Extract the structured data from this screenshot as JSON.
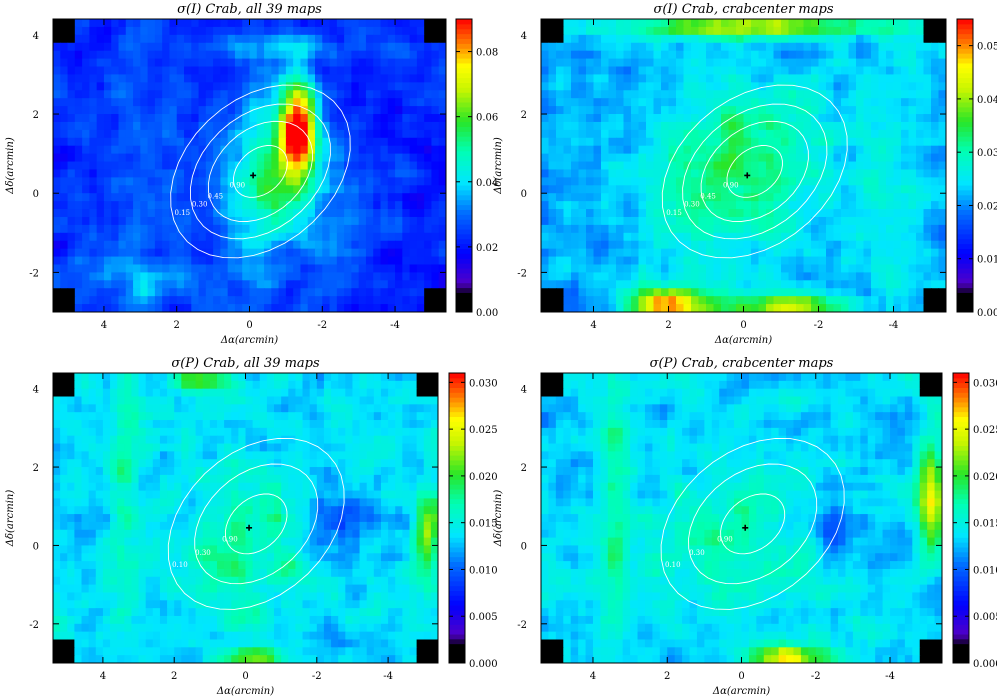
{
  "chart_data": [
    {
      "type": "heatmap",
      "title": "σ(I) Crab, all 39 maps",
      "xlabel": "Δα(arcmin)",
      "ylabel": "Δδ(arcmin)",
      "xlim": [
        5.4,
        -5.4
      ],
      "ylim": [
        -3.0,
        4.4
      ],
      "xticks": [
        "4",
        "2",
        "0",
        "-2",
        "-4"
      ],
      "yticks": [
        "-2",
        "0",
        "2",
        "4"
      ],
      "colorbar": {
        "min": 0.0,
        "max": 0.09,
        "ticks": [
          "0.00",
          "0.02",
          "0.04",
          "0.06",
          "0.08"
        ]
      },
      "background": 0.022,
      "crab_center": [
        -0.1,
        0.45
      ],
      "blobs": [
        {
          "x": -1.35,
          "y": 1.6,
          "sx": 0.35,
          "sy": 0.9,
          "a": 0.065
        },
        {
          "x": -0.5,
          "y": 0.7,
          "sx": 0.9,
          "sy": 1.4,
          "a": 0.025
        },
        {
          "x": -0.4,
          "y": -0.5,
          "sx": 0.6,
          "sy": 1.0,
          "a": 0.012
        },
        {
          "x": 3.0,
          "y": 0.5,
          "sx": 0.9,
          "sy": 3.0,
          "a": 0.006
        },
        {
          "x": -2.5,
          "y": -0.4,
          "sx": 0.9,
          "sy": 1.4,
          "a": 0.007
        },
        {
          "x": -1.0,
          "y": 3.7,
          "sx": 1.6,
          "sy": 0.25,
          "a": 0.012
        },
        {
          "x": 2.5,
          "y": -2.3,
          "sx": 1.8,
          "sy": 0.5,
          "a": 0.008
        }
      ],
      "contour_levels": [
        "0.15",
        "0.30",
        "0.45",
        "0.90"
      ]
    },
    {
      "type": "heatmap",
      "title": "σ(I) Crab, crabcenter maps",
      "xlabel": "Δα(arcmin)",
      "ylabel": "Δδ(arcmin)",
      "xlim": [
        5.4,
        -5.4
      ],
      "ylim": [
        -3.0,
        4.4
      ],
      "xticks": [
        "4",
        "2",
        "0",
        "-2",
        "-4"
      ],
      "yticks": [
        "-2",
        "0",
        "2",
        "4"
      ],
      "colorbar": {
        "min": 0.0,
        "max": 0.055,
        "ticks": [
          "0.00",
          "0.01",
          "0.02",
          "0.03",
          "0.04",
          "0.05"
        ]
      },
      "background": 0.022,
      "crab_center": [
        -0.1,
        0.45
      ],
      "blobs": [
        {
          "x": -0.2,
          "y": 0.8,
          "sx": 1.4,
          "sy": 1.5,
          "a": 0.011
        },
        {
          "x": 1.3,
          "y": 0.0,
          "sx": 0.8,
          "sy": 1.3,
          "a": 0.005
        },
        {
          "x": 0.0,
          "y": 4.2,
          "sx": 2.6,
          "sy": 0.2,
          "a": 0.02
        },
        {
          "x": 2.0,
          "y": -2.8,
          "sx": 0.7,
          "sy": 0.3,
          "a": 0.03
        },
        {
          "x": -1.2,
          "y": -2.85,
          "sx": 1.2,
          "sy": 0.2,
          "a": 0.02
        },
        {
          "x": -3.8,
          "y": 0.5,
          "sx": 0.6,
          "sy": 2.0,
          "a": 0.004
        }
      ],
      "contour_levels": [
        "0.15",
        "0.30",
        "0.45",
        "0.90"
      ]
    },
    {
      "type": "heatmap",
      "title": "σ(P) Crab, all 39 maps",
      "xlabel": "Δα(arcmin)",
      "ylabel": "Δδ(arcmin)",
      "xlim": [
        5.4,
        -5.4
      ],
      "ylim": [
        -3.0,
        4.4
      ],
      "xticks": [
        "4",
        "2",
        "0",
        "-2",
        "-4"
      ],
      "yticks": [
        "-2",
        "0",
        "2",
        "4"
      ],
      "colorbar": {
        "min": 0.0,
        "max": 0.031,
        "ticks": [
          "0.000",
          "0.005",
          "0.010",
          "0.015",
          "0.020",
          "0.025",
          "0.030"
        ]
      },
      "background": 0.0135,
      "crab_center": [
        -0.1,
        0.45
      ],
      "blobs": [
        {
          "x": 0.0,
          "y": 0.0,
          "sx": 1.4,
          "sy": 1.2,
          "a": 0.004
        },
        {
          "x": -5.1,
          "y": 0.3,
          "sx": 0.25,
          "sy": 0.8,
          "a": 0.009
        },
        {
          "x": 3.4,
          "y": 1.0,
          "sx": 0.3,
          "sy": 2.5,
          "a": 0.004
        },
        {
          "x": 1.2,
          "y": 4.2,
          "sx": 0.6,
          "sy": 0.2,
          "a": 0.008
        },
        {
          "x": -0.2,
          "y": -2.85,
          "sx": 0.6,
          "sy": 0.2,
          "a": 0.01
        },
        {
          "x": -2.4,
          "y": 0.7,
          "sx": 0.6,
          "sy": 0.6,
          "a": -0.004
        }
      ],
      "contour_levels": [
        "0.10",
        "0.30",
        "0.90"
      ]
    },
    {
      "type": "heatmap",
      "title": "σ(P) Crab, crabcenter maps",
      "xlabel": "Δα(arcmin)",
      "ylabel": "Δδ(arcmin)",
      "xlim": [
        5.4,
        -5.4
      ],
      "ylim": [
        -3.0,
        4.4
      ],
      "xticks": [
        "4",
        "2",
        "0",
        "-2",
        "-4"
      ],
      "yticks": [
        "-2",
        "0",
        "2",
        "4"
      ],
      "colorbar": {
        "min": 0.0,
        "max": 0.031,
        "ticks": [
          "0.000",
          "0.005",
          "0.010",
          "0.015",
          "0.020",
          "0.025",
          "0.030"
        ]
      },
      "background": 0.0135,
      "crab_center": [
        -0.1,
        0.45
      ],
      "blobs": [
        {
          "x": 0.0,
          "y": 0.0,
          "sx": 1.4,
          "sy": 1.2,
          "a": 0.004
        },
        {
          "x": -5.1,
          "y": 1.2,
          "sx": 0.25,
          "sy": 1.0,
          "a": 0.011
        },
        {
          "x": 3.4,
          "y": 1.0,
          "sx": 0.3,
          "sy": 2.5,
          "a": 0.004
        },
        {
          "x": -1.3,
          "y": -2.85,
          "sx": 0.6,
          "sy": 0.2,
          "a": 0.014
        },
        {
          "x": -2.4,
          "y": 0.7,
          "sx": 0.6,
          "sy": 0.6,
          "a": -0.004
        }
      ],
      "contour_levels": [
        "0.10",
        "0.30",
        "0.90"
      ]
    }
  ]
}
